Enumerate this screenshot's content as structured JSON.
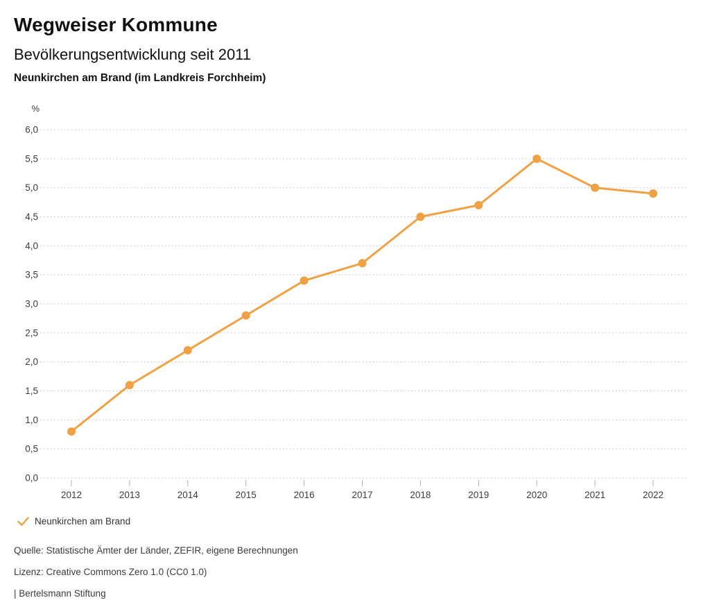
{
  "header": {
    "title": "Wegweiser Kommune",
    "subtitle": "Bevölkerungsentwicklung seit 2011",
    "region": "Neunkirchen am Brand (im Landkreis Forchheim)"
  },
  "legend": {
    "label": "Neunkirchen am Brand"
  },
  "footer": {
    "source": "Quelle: Statistische Ämter der Länder, ZEFIR, eigene Berechnungen",
    "license": "Lizenz: Creative Commons Zero 1.0 (CC0 1.0)",
    "brand": "| Bertelsmann Stiftung"
  },
  "colors": {
    "series": "#F0A143",
    "grid": "#BDBDBD",
    "tick": "#B0B0B0",
    "axis_label": "#3C3C3C"
  },
  "chart_data": {
    "type": "line",
    "title": "Bevölkerungsentwicklung seit 2011",
    "region": "Neunkirchen am Brand (im Landkreis Forchheim)",
    "unit": "%",
    "xlabel": "",
    "ylabel": "%",
    "categories": [
      "2012",
      "2013",
      "2014",
      "2015",
      "2016",
      "2017",
      "2018",
      "2019",
      "2020",
      "2021",
      "2022"
    ],
    "series": [
      {
        "name": "Neunkirchen am Brand",
        "color": "#F0A143",
        "values": [
          0.8,
          1.6,
          2.2,
          2.8,
          3.4,
          3.7,
          4.5,
          4.7,
          5.5,
          5.0,
          4.9
        ]
      }
    ],
    "ylim": [
      0,
      6
    ],
    "y_tick_step": 0.5,
    "y_tick_labels": [
      "0,0",
      "0,5",
      "1,0",
      "1,5",
      "2,0",
      "2,5",
      "3,0",
      "3,5",
      "4,0",
      "4,5",
      "5,0",
      "5,5",
      "6,0"
    ],
    "decimal_format": "german-comma",
    "grid": "horizontal-dotted",
    "legend_position": "bottom-left"
  }
}
